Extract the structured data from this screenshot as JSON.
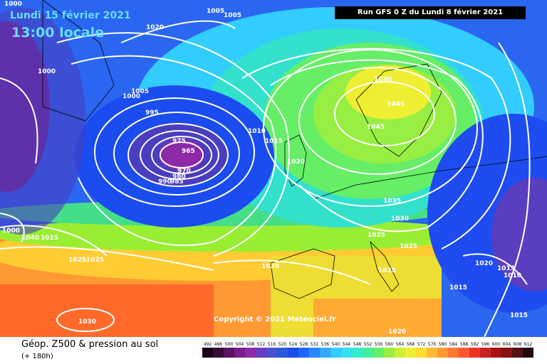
{
  "header": {
    "date": "Lundi 15 février 2021",
    "time": "13:00 locale",
    "run": "Run GFS 0 Z du Lundi 8 février 2021"
  },
  "copyright": "Copyright © 2021 Météociel.fr",
  "footer": {
    "title": "Géop. Z500 & pression au sol",
    "lead": "(+ 180h)"
  },
  "scale": {
    "values": [
      "492",
      "496",
      "500",
      "504",
      "508",
      "512",
      "516",
      "520",
      "524",
      "528",
      "532",
      "536",
      "540",
      "544",
      "548",
      "552",
      "556",
      "560",
      "564",
      "568",
      "572",
      "576",
      "580",
      "584",
      "588",
      "592",
      "596",
      "600",
      "604",
      "608",
      "612"
    ],
    "colors": [
      "#1a0016",
      "#3a0a3a",
      "#5a1462",
      "#7a1e8a",
      "#8c2aa8",
      "#6a3ec0",
      "#4a52d0",
      "#2a5ae0",
      "#1a4cf0",
      "#1e66ff",
      "#2a88ff",
      "#33aaff",
      "#33ccff",
      "#33e0ee",
      "#33eecc",
      "#44ee99",
      "#66ee66",
      "#99ee44",
      "#ccee33",
      "#eeee33",
      "#ffdd33",
      "#ffbb33",
      "#ff9933",
      "#ff7733",
      "#ff5533",
      "#ee3322",
      "#cc2222",
      "#aa1111",
      "#881111",
      "#551111",
      "#220808"
    ]
  },
  "isobars": [
    "1000",
    "1005",
    "1020",
    "1000",
    "1005",
    "1000",
    "995",
    "975",
    "965",
    "970",
    "980",
    "990",
    "985",
    "1010",
    "1015",
    "1020",
    "1040",
    "1045",
    "1045",
    "1035",
    "1030",
    "1025",
    "1025",
    "1025",
    "1020",
    "1025",
    "1020",
    "1015",
    "1010",
    "1015",
    "1015",
    "1000",
    "1040",
    "1015",
    "1025",
    "1030",
    "1020",
    "1005"
  ]
}
